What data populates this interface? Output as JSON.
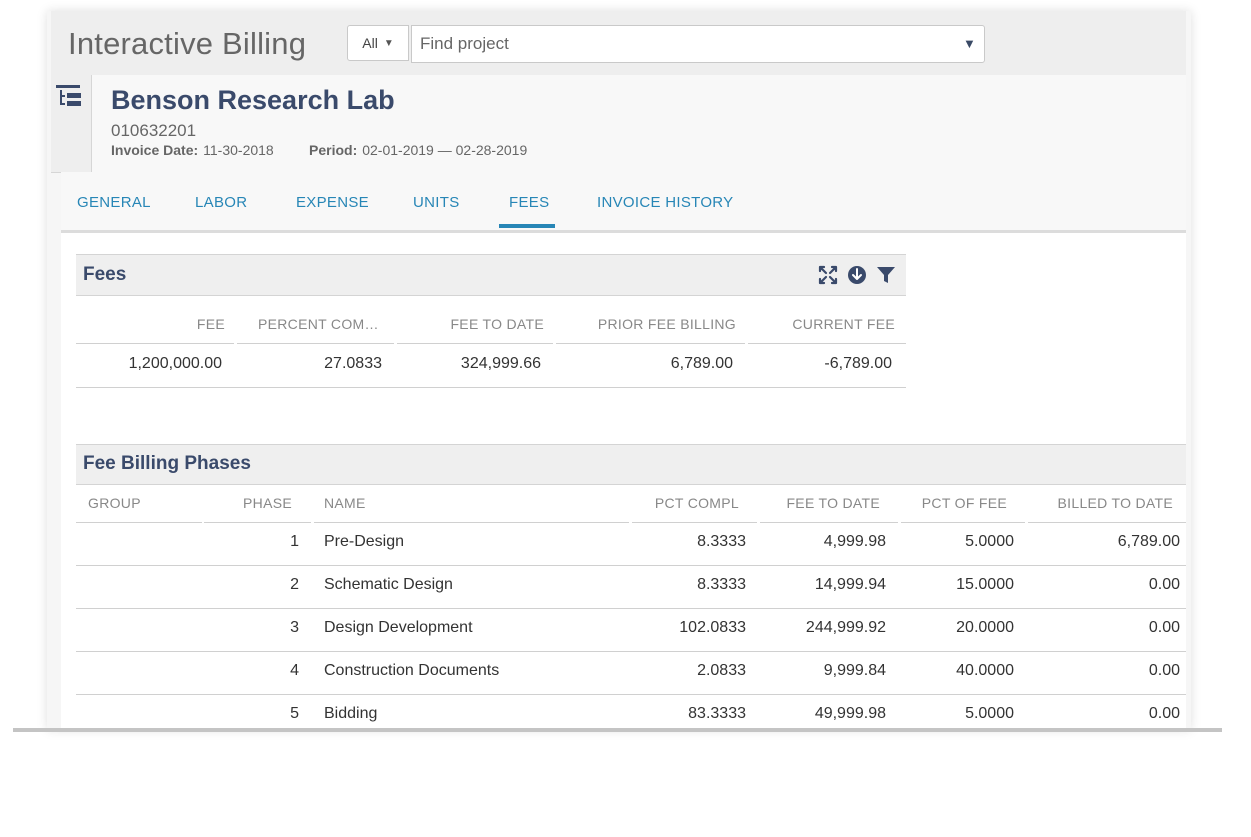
{
  "app": {
    "title": "Interactive Billing"
  },
  "search": {
    "scope": "All",
    "placeholder": "Find project"
  },
  "project": {
    "name": "Benson Research Lab",
    "number": "010632201",
    "invoice_date_label": "Invoice Date:",
    "invoice_date": "11-30-2018",
    "period_label": "Period:",
    "period": "02-01-2019 — 02-28-2019"
  },
  "tabs": [
    {
      "label": "GENERAL"
    },
    {
      "label": "LABOR"
    },
    {
      "label": "EXPENSE"
    },
    {
      "label": "UNITS"
    },
    {
      "label": "FEES",
      "active": true
    },
    {
      "label": "INVOICE HISTORY"
    }
  ],
  "fees": {
    "title": "Fees",
    "icons": [
      "expand-icon",
      "download-icon",
      "filter-icon"
    ],
    "columns": [
      "FEE",
      "PERCENT COM…",
      "FEE TO DATE",
      "PRIOR FEE BILLING",
      "CURRENT FEE"
    ],
    "row": [
      "1,200,000.00",
      "27.0833",
      "324,999.66",
      "6,789.00",
      "-6,789.00"
    ]
  },
  "phases": {
    "title": "Fee Billing Phases",
    "columns": [
      "GROUP",
      "PHASE",
      "NAME",
      "PCT COMPL",
      "FEE TO DATE",
      "PCT OF FEE",
      "BILLED TO DATE"
    ],
    "rows": [
      [
        "",
        "1",
        "Pre-Design",
        "8.3333",
        "4,999.98",
        "5.0000",
        "6,789.00"
      ],
      [
        "",
        "2",
        "Schematic Design",
        "8.3333",
        "14,999.94",
        "15.0000",
        "0.00"
      ],
      [
        "",
        "3",
        "Design Development",
        "102.0833",
        "244,999.92",
        "20.0000",
        "0.00"
      ],
      [
        "",
        "4",
        "Construction Documents",
        "2.0833",
        "9,999.84",
        "40.0000",
        "0.00"
      ],
      [
        "",
        "5",
        "Bidding",
        "83.3333",
        "49,999.98",
        "5.0000",
        "0.00"
      ]
    ]
  },
  "colors": {
    "accent": "#2786b6",
    "heading": "#3a4a6b"
  }
}
